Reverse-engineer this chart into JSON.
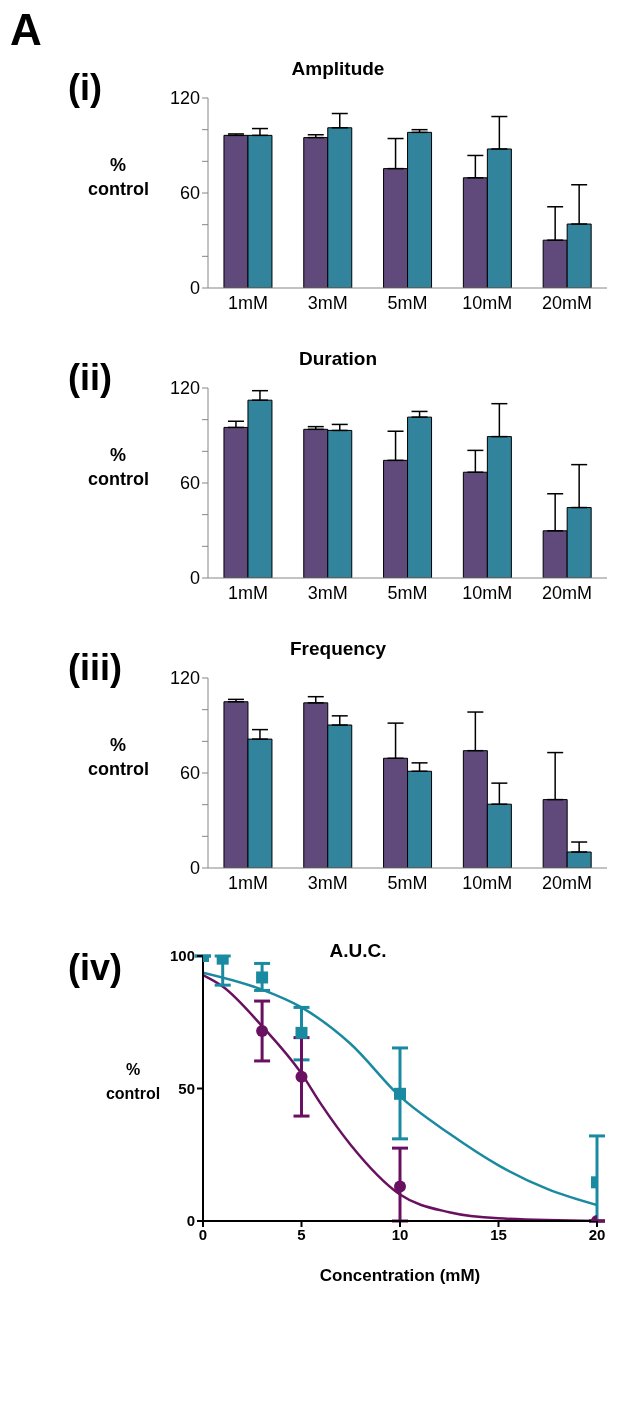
{
  "chart_data": [
    {
      "type": "bar",
      "title": "Amplitude",
      "ylabel": "% control",
      "annotations": [
        "A",
        "(i)"
      ],
      "categories": [
        "1mM",
        "3mM",
        "5mM",
        "10mM",
        "20mM"
      ],
      "ylim": [
        0,
        120
      ],
      "yticks": [
        0,
        {
          "value": 20,
          "label": null
        },
        {
          "value": 40,
          "label": null
        },
        60,
        {
          "value": 80,
          "label": null
        },
        {
          "value": 100,
          "label": null
        },
        120
      ],
      "series": [
        {
          "color": "#5f4a7b",
          "values": [
            96.4,
            95,
            75.4,
            69.6,
            30.2
          ],
          "errors": [
            [
              96.4,
              97.3
            ],
            [
              95,
              96.8
            ],
            [
              75.4,
              94.4
            ],
            [
              69.6,
              83.7
            ],
            [
              30.2,
              51.3
            ]
          ]
        },
        {
          "color": "#31849b",
          "values": [
            96.4,
            101.2,
            98.3,
            87.8,
            40.4
          ],
          "errors": [
            [
              96.4,
              100.7
            ],
            [
              101.2,
              110.2
            ],
            [
              98.3,
              100
            ],
            [
              87.8,
              108.3
            ],
            [
              40.4,
              65.2
            ]
          ]
        }
      ]
    },
    {
      "type": "bar",
      "title": "Duration",
      "ylabel": "% control",
      "annotations": [
        "(ii)"
      ],
      "categories": [
        "1mM",
        "3mM",
        "5mM",
        "10mM",
        "20mM"
      ],
      "ylim": [
        0,
        120
      ],
      "yticks": [
        0,
        {
          "value": 20,
          "label": null
        },
        {
          "value": 40,
          "label": null
        },
        60,
        {
          "value": 80,
          "label": null
        },
        {
          "value": 100,
          "label": null
        },
        120
      ],
      "series": [
        {
          "color": "#5f4a7b",
          "values": [
            95.1,
            93.9,
            74.3,
            66.8,
            29.8
          ],
          "errors": [
            [
              95.1,
              99
            ],
            [
              93.9,
              95.6
            ],
            [
              74.3,
              92.7
            ],
            [
              66.8,
              80.6
            ],
            [
              29.8,
              53.2
            ]
          ]
        },
        {
          "color": "#31849b",
          "values": [
            112.3,
            93.2,
            101.6,
            89.3,
            44.5
          ],
          "errors": [
            [
              112.3,
              118.3
            ],
            [
              93.2,
              97
            ],
            [
              101.6,
              105.2
            ],
            [
              89.3,
              110.1
            ],
            [
              44.5,
              71.6
            ]
          ]
        }
      ]
    },
    {
      "type": "bar",
      "title": "Frequency",
      "ylabel": "% control",
      "annotations": [
        "(iii)"
      ],
      "categories": [
        "1mM",
        "3mM",
        "5mM",
        "10mM",
        "20mM"
      ],
      "ylim": [
        0,
        120
      ],
      "yticks": [
        0,
        {
          "value": 20,
          "label": null
        },
        {
          "value": 40,
          "label": null
        },
        60,
        {
          "value": 80,
          "label": null
        },
        {
          "value": 100,
          "label": null
        },
        120
      ],
      "series": [
        {
          "color": "#5f4a7b",
          "values": [
            105,
            104.3,
            69.3,
            74.1,
            43.2
          ],
          "errors": [
            [
              105,
              106.5
            ],
            [
              104.3,
              108.2
            ],
            [
              69.3,
              91.5
            ],
            [
              74.1,
              98.5
            ],
            [
              43.2,
              72.9
            ]
          ]
        },
        {
          "color": "#31849b",
          "values": [
            81.4,
            90.3,
            61.1,
            40.3,
            10.1
          ],
          "errors": [
            [
              81.4,
              87.4
            ],
            [
              90.3,
              96.1
            ],
            [
              61.1,
              66.4
            ],
            [
              40.3,
              53.6
            ],
            [
              10.1,
              16.4
            ]
          ]
        }
      ]
    },
    {
      "type": "scatter",
      "title": "A.U.C.",
      "xlabel": "Concentration (mM)",
      "ylabel": "% control",
      "annotations": [
        "(iv)"
      ],
      "xlim": [
        0,
        20
      ],
      "xticks": [
        0,
        5,
        10,
        15,
        20
      ],
      "ylim": [
        0,
        100
      ],
      "yticks": [
        0,
        50,
        100
      ],
      "series": [
        {
          "type": "line",
          "color": "#1a8aa0",
          "x": [
            0,
            3,
            5,
            7.5,
            10,
            12.5,
            15,
            17.5,
            20
          ],
          "values": [
            93.7,
            87.3,
            80.6,
            66.8,
            47,
            33,
            21,
            12,
            6
          ]
        },
        {
          "type": "line",
          "color": "#6a1060",
          "x": [
            0,
            1,
            3,
            5,
            6,
            7.5,
            10,
            12.5,
            15,
            20
          ],
          "values": [
            92.8,
            88.5,
            73.5,
            55.6,
            44,
            28.7,
            10,
            3.3,
            1,
            0
          ]
        },
        {
          "type": "scatter",
          "marker": "square",
          "color": "#1a8aa0",
          "x": [
            0,
            1,
            3,
            5,
            10,
            20
          ],
          "values": [
            100,
            99,
            91.9,
            71,
            48,
            14.6
          ],
          "errors": [
            null,
            [
              89,
              100
            ],
            [
              87,
              97.2
            ],
            [
              60.8,
              80.6
            ],
            [
              31,
              65.3
            ],
            [
              0,
              32.1
            ]
          ]
        },
        {
          "type": "scatter",
          "marker": "circle",
          "color": "#6a1060",
          "x": [
            3,
            5,
            10,
            20
          ],
          "values": [
            71.7,
            54.4,
            13,
            0
          ],
          "errors": [
            [
              60.4,
              83
            ],
            [
              39.6,
              69.2
            ],
            [
              0,
              27.5
            ],
            null
          ]
        }
      ]
    }
  ]
}
